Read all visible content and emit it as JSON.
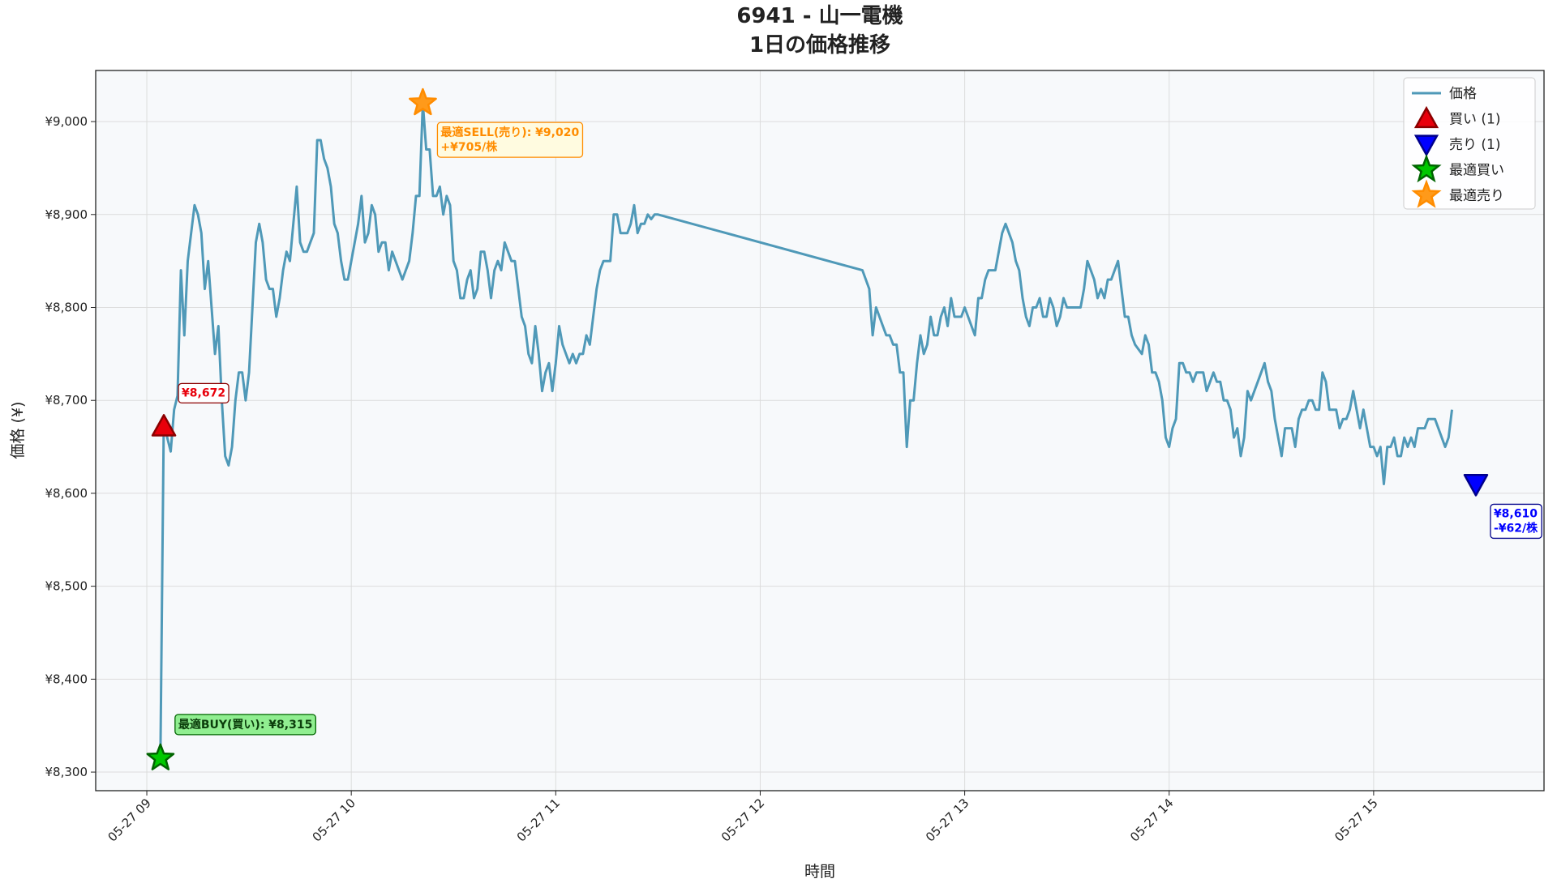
{
  "chart_data": {
    "type": "line",
    "title": "6941 - 山一電機",
    "subtitle": "1日の価格推移",
    "xlabel": "時間",
    "ylabel": "価格 (¥)",
    "grid": true,
    "legend": "upper right",
    "xlim": [
      "05-27 08:45",
      "05-27 15:50"
    ],
    "xticks": [
      {
        "value": "05-27 09:00",
        "label": "05-27 09"
      },
      {
        "value": "05-27 10:00",
        "label": "05-27 10"
      },
      {
        "value": "05-27 11:00",
        "label": "05-27 11"
      },
      {
        "value": "05-27 12:00",
        "label": "05-27 12"
      },
      {
        "value": "05-27 13:00",
        "label": "05-27 13"
      },
      {
        "value": "05-27 14:00",
        "label": "05-27 14"
      },
      {
        "value": "05-27 15:00",
        "label": "05-27 15"
      }
    ],
    "ylim": [
      8280,
      9055
    ],
    "yticks": [
      {
        "value": 8300,
        "label": "¥8,300"
      },
      {
        "value": 8400,
        "label": "¥8,400"
      },
      {
        "value": 8500,
        "label": "¥8,500"
      },
      {
        "value": 8600,
        "label": "¥8,600"
      },
      {
        "value": 8700,
        "label": "¥8,700"
      },
      {
        "value": 8800,
        "label": "¥8,800"
      },
      {
        "value": 8900,
        "label": "¥8,900"
      },
      {
        "value": 9000,
        "label": "¥9,000"
      }
    ],
    "x": [
      "05-27 09:04",
      "05-27 09:05",
      "05-27 09:06",
      "05-27 09:07",
      "05-27 09:08",
      "05-27 09:09",
      "05-27 09:10",
      "05-27 09:11",
      "05-27 09:12",
      "05-27 09:13",
      "05-27 09:14",
      "05-27 09:15",
      "05-27 09:16",
      "05-27 09:17",
      "05-27 09:18",
      "05-27 09:19",
      "05-27 09:20",
      "05-27 09:21",
      "05-27 09:22",
      "05-27 09:23",
      "05-27 09:24",
      "05-27 09:25",
      "05-27 09:26",
      "05-27 09:27",
      "05-27 09:28",
      "05-27 09:29",
      "05-27 09:30",
      "05-27 09:31",
      "05-27 09:32",
      "05-27 09:33",
      "05-27 09:34",
      "05-27 09:35",
      "05-27 09:36",
      "05-27 09:37",
      "05-27 09:38",
      "05-27 09:39",
      "05-27 09:40",
      "05-27 09:41",
      "05-27 09:42",
      "05-27 09:43",
      "05-27 09:44",
      "05-27 09:45",
      "05-27 09:46",
      "05-27 09:47",
      "05-27 09:48",
      "05-27 09:49",
      "05-27 09:50",
      "05-27 09:51",
      "05-27 09:52",
      "05-27 09:53",
      "05-27 09:54",
      "05-27 09:55",
      "05-27 09:56",
      "05-27 09:57",
      "05-27 09:58",
      "05-27 09:59",
      "05-27 10:00",
      "05-27 10:01",
      "05-27 10:02",
      "05-27 10:03",
      "05-27 10:04",
      "05-27 10:05",
      "05-27 10:06",
      "05-27 10:07",
      "05-27 10:08",
      "05-27 10:09",
      "05-27 10:10",
      "05-27 10:11",
      "05-27 10:12",
      "05-27 10:13",
      "05-27 10:14",
      "05-27 10:15",
      "05-27 10:16",
      "05-27 10:17",
      "05-27 10:18",
      "05-27 10:19",
      "05-27 10:20",
      "05-27 10:21",
      "05-27 10:22",
      "05-27 10:23",
      "05-27 10:24",
      "05-27 10:25",
      "05-27 10:26",
      "05-27 10:27",
      "05-27 10:28",
      "05-27 10:29",
      "05-27 10:30",
      "05-27 10:31",
      "05-27 10:32",
      "05-27 10:33",
      "05-27 10:34",
      "05-27 10:35",
      "05-27 10:36",
      "05-27 10:37",
      "05-27 10:38",
      "05-27 10:39",
      "05-27 10:40",
      "05-27 10:41",
      "05-27 10:42",
      "05-27 10:43",
      "05-27 10:44",
      "05-27 10:45",
      "05-27 10:46",
      "05-27 10:47",
      "05-27 10:48",
      "05-27 10:49",
      "05-27 10:50",
      "05-27 10:51",
      "05-27 10:52",
      "05-27 10:53",
      "05-27 10:54",
      "05-27 10:55",
      "05-27 10:56",
      "05-27 10:57",
      "05-27 10:58",
      "05-27 10:59",
      "05-27 11:00",
      "05-27 11:01",
      "05-27 11:02",
      "05-27 11:03",
      "05-27 11:04",
      "05-27 11:05",
      "05-27 11:06",
      "05-27 11:07",
      "05-27 11:08",
      "05-27 11:09",
      "05-27 11:10",
      "05-27 11:11",
      "05-27 11:12",
      "05-27 11:13",
      "05-27 11:14",
      "05-27 11:15",
      "05-27 11:16",
      "05-27 11:17",
      "05-27 11:18",
      "05-27 11:19",
      "05-27 11:20",
      "05-27 11:21",
      "05-27 11:22",
      "05-27 11:23",
      "05-27 11:24",
      "05-27 11:25",
      "05-27 11:26",
      "05-27 11:27",
      "05-27 11:28",
      "05-27 11:29",
      "05-27 11:30",
      "05-27 12:30",
      "05-27 12:31",
      "05-27 12:32",
      "05-27 12:33",
      "05-27 12:34",
      "05-27 12:35",
      "05-27 12:36",
      "05-27 12:37",
      "05-27 12:38",
      "05-27 12:39",
      "05-27 12:40",
      "05-27 12:41",
      "05-27 12:42",
      "05-27 12:43",
      "05-27 12:44",
      "05-27 12:45",
      "05-27 12:46",
      "05-27 12:47",
      "05-27 12:48",
      "05-27 12:49",
      "05-27 12:50",
      "05-27 12:51",
      "05-27 12:52",
      "05-27 12:53",
      "05-27 12:54",
      "05-27 12:55",
      "05-27 12:56",
      "05-27 12:57",
      "05-27 12:58",
      "05-27 12:59",
      "05-27 13:00",
      "05-27 13:01",
      "05-27 13:02",
      "05-27 13:03",
      "05-27 13:04",
      "05-27 13:05",
      "05-27 13:06",
      "05-27 13:07",
      "05-27 13:08",
      "05-27 13:09",
      "05-27 13:10",
      "05-27 13:11",
      "05-27 13:12",
      "05-27 13:13",
      "05-27 13:14",
      "05-27 13:15",
      "05-27 13:16",
      "05-27 13:17",
      "05-27 13:18",
      "05-27 13:19",
      "05-27 13:20",
      "05-27 13:21",
      "05-27 13:22",
      "05-27 13:23",
      "05-27 13:24",
      "05-27 13:25",
      "05-27 13:26",
      "05-27 13:27",
      "05-27 13:28",
      "05-27 13:29",
      "05-27 13:30",
      "05-27 13:31",
      "05-27 13:32",
      "05-27 13:33",
      "05-27 13:34",
      "05-27 13:35",
      "05-27 13:36",
      "05-27 13:37",
      "05-27 13:38",
      "05-27 13:39",
      "05-27 13:40",
      "05-27 13:41",
      "05-27 13:42",
      "05-27 13:43",
      "05-27 13:44",
      "05-27 13:45",
      "05-27 13:46",
      "05-27 13:47",
      "05-27 13:48",
      "05-27 13:49",
      "05-27 13:50",
      "05-27 13:51",
      "05-27 13:52",
      "05-27 13:53",
      "05-27 13:54",
      "05-27 13:55",
      "05-27 13:56",
      "05-27 13:57",
      "05-27 13:58",
      "05-27 13:59",
      "05-27 14:00",
      "05-27 14:01",
      "05-27 14:02",
      "05-27 14:03",
      "05-27 14:04",
      "05-27 14:05",
      "05-27 14:06",
      "05-27 14:07",
      "05-27 14:08",
      "05-27 14:09",
      "05-27 14:10",
      "05-27 14:11",
      "05-27 14:12",
      "05-27 14:13",
      "05-27 14:14",
      "05-27 14:15",
      "05-27 14:16",
      "05-27 14:17",
      "05-27 14:18",
      "05-27 14:19",
      "05-27 14:20",
      "05-27 14:21",
      "05-27 14:22",
      "05-27 14:23",
      "05-27 14:24",
      "05-27 14:25",
      "05-27 14:26",
      "05-27 14:27",
      "05-27 14:28",
      "05-27 14:29",
      "05-27 14:30",
      "05-27 14:31",
      "05-27 14:32",
      "05-27 14:33",
      "05-27 14:34",
      "05-27 14:35",
      "05-27 14:36",
      "05-27 14:37",
      "05-27 14:38",
      "05-27 14:39",
      "05-27 14:40",
      "05-27 14:41",
      "05-27 14:42",
      "05-27 14:43",
      "05-27 14:44",
      "05-27 14:45",
      "05-27 14:46",
      "05-27 14:47",
      "05-27 14:48",
      "05-27 14:49",
      "05-27 14:50",
      "05-27 14:51",
      "05-27 14:52",
      "05-27 14:53",
      "05-27 14:54",
      "05-27 14:55",
      "05-27 14:56",
      "05-27 14:57",
      "05-27 14:58",
      "05-27 14:59",
      "05-27 15:00",
      "05-27 15:01",
      "05-27 15:02",
      "05-27 15:03",
      "05-27 15:04",
      "05-27 15:05",
      "05-27 15:06",
      "05-27 15:07",
      "05-27 15:08",
      "05-27 15:09",
      "05-27 15:10",
      "05-27 15:11",
      "05-27 15:12",
      "05-27 15:13",
      "05-27 15:14",
      "05-27 15:15",
      "05-27 15:16",
      "05-27 15:17",
      "05-27 15:18",
      "05-27 15:19",
      "05-27 15:20",
      "05-27 15:21",
      "05-27 15:22",
      "05-27 15:23"
    ],
    "series": [
      {
        "name": "価格",
        "color": "#4f99b8",
        "values": [
          8315,
          8680,
          8660,
          8645,
          8690,
          8705,
          8840,
          8770,
          8850,
          8880,
          8910,
          8900,
          8880,
          8820,
          8850,
          8800,
          8750,
          8780,
          8700,
          8640,
          8630,
          8650,
          8700,
          8730,
          8730,
          8700,
          8730,
          8800,
          8870,
          8890,
          8870,
          8830,
          8820,
          8820,
          8790,
          8810,
          8840,
          8860,
          8850,
          8890,
          8930,
          8870,
          8860,
          8860,
          8870,
          8880,
          8980,
          8980,
          8960,
          8950,
          8930,
          8890,
          8880,
          8850,
          8830,
          8830,
          8850,
          8870,
          8890,
          8920,
          8870,
          8880,
          8910,
          8900,
          8860,
          8870,
          8870,
          8840,
          8860,
          8850,
          8840,
          8830,
          8840,
          8850,
          8880,
          8920,
          8920,
          9020,
          8970,
          8970,
          8920,
          8920,
          8930,
          8900,
          8920,
          8910,
          8850,
          8840,
          8810,
          8810,
          8830,
          8840,
          8810,
          8820,
          8860,
          8860,
          8840,
          8810,
          8840,
          8850,
          8840,
          8870,
          8860,
          8850,
          8850,
          8820,
          8790,
          8780,
          8750,
          8740,
          8780,
          8750,
          8710,
          8730,
          8740,
          8710,
          8740,
          8780,
          8760,
          8750,
          8740,
          8750,
          8740,
          8750,
          8750,
          8770,
          8760,
          8790,
          8820,
          8840,
          8850,
          8850,
          8850,
          8900,
          8900,
          8880,
          8880,
          8880,
          8890,
          8910,
          8880,
          8890,
          8890,
          8900,
          8895,
          8900,
          8900,
          8840,
          8830,
          8820,
          8770,
          8800,
          8790,
          8780,
          8770,
          8770,
          8760,
          8760,
          8730,
          8730,
          8650,
          8700,
          8700,
          8740,
          8770,
          8750,
          8760,
          8790,
          8770,
          8770,
          8790,
          8800,
          8780,
          8810,
          8790,
          8790,
          8790,
          8800,
          8790,
          8780,
          8770,
          8810,
          8810,
          8830,
          8840,
          8840,
          8840,
          8860,
          8880,
          8890,
          8880,
          8870,
          8850,
          8840,
          8810,
          8790,
          8780,
          8800,
          8800,
          8810,
          8790,
          8790,
          8810,
          8800,
          8780,
          8790,
          8810,
          8800,
          8800,
          8800,
          8800,
          8800,
          8820,
          8850,
          8840,
          8830,
          8810,
          8820,
          8810,
          8830,
          8830,
          8840,
          8850,
          8820,
          8790,
          8790,
          8770,
          8760,
          8755,
          8750,
          8770,
          8760,
          8730,
          8730,
          8720,
          8700,
          8660,
          8650,
          8670,
          8680,
          8740,
          8740,
          8730,
          8730,
          8720,
          8730,
          8730,
          8730,
          8710,
          8720,
          8730,
          8720,
          8720,
          8700,
          8700,
          8690,
          8660,
          8670,
          8640,
          8660,
          8710,
          8700,
          8710,
          8720,
          8730,
          8740,
          8720,
          8710,
          8680,
          8660,
          8640,
          8670,
          8670,
          8670,
          8650,
          8680,
          8690,
          8690,
          8700,
          8700,
          8690,
          8690,
          8730,
          8720,
          8690,
          8690,
          8690,
          8670,
          8680,
          8680,
          8690,
          8710,
          8690,
          8670,
          8690,
          8670,
          8650,
          8650,
          8640,
          8650,
          8610,
          8650,
          8650,
          8660,
          8640,
          8640,
          8660,
          8650,
          8660,
          8650,
          8670,
          8670,
          8670,
          8680,
          8680,
          8680,
          8670,
          8660,
          8650,
          8660,
          8690
        ]
      }
    ],
    "markers": [
      {
        "name": "買い (1)",
        "marker": "triangle-up",
        "color": "#e8000b",
        "edge": "#8b0000",
        "label_fill": "#ffffff",
        "label_text": "#e8000b",
        "x": [
          "05-27 09:05"
        ],
        "values": [
          8672
        ],
        "value_labels": [
          "¥8,672"
        ],
        "annotations": []
      },
      {
        "name": "売り (1)",
        "marker": "triangle-down",
        "color": "#0000ff",
        "edge": "#00008b",
        "label_fill": "#ffffff",
        "label_text": "#0000ff",
        "x": [
          "05-27 15:30"
        ],
        "values": [
          8610
        ],
        "value_labels": [
          "¥8,610"
        ],
        "annotations": [
          "-¥62/株"
        ]
      },
      {
        "name": "最適買い",
        "marker": "star",
        "color": "#00c800",
        "edge": "#006400",
        "label_fill": "#90ee90",
        "label_text": "#0b3d0b",
        "x": [
          "05-27 09:04"
        ],
        "values": [
          8315
        ],
        "value_labels": [
          "最適BUY(買い): ¥8,315"
        ],
        "annotations": []
      },
      {
        "name": "最適売り",
        "marker": "star",
        "color": "#ff9a1a",
        "edge": "#ff8c00",
        "label_fill": "#fffbe0",
        "label_text": "#ff8c00",
        "x": [
          "05-27 10:21"
        ],
        "values": [
          9020
        ],
        "value_labels": [
          "最適SELL(売り): ¥9,020"
        ],
        "annotations": [
          "+¥705/株"
        ]
      }
    ]
  }
}
